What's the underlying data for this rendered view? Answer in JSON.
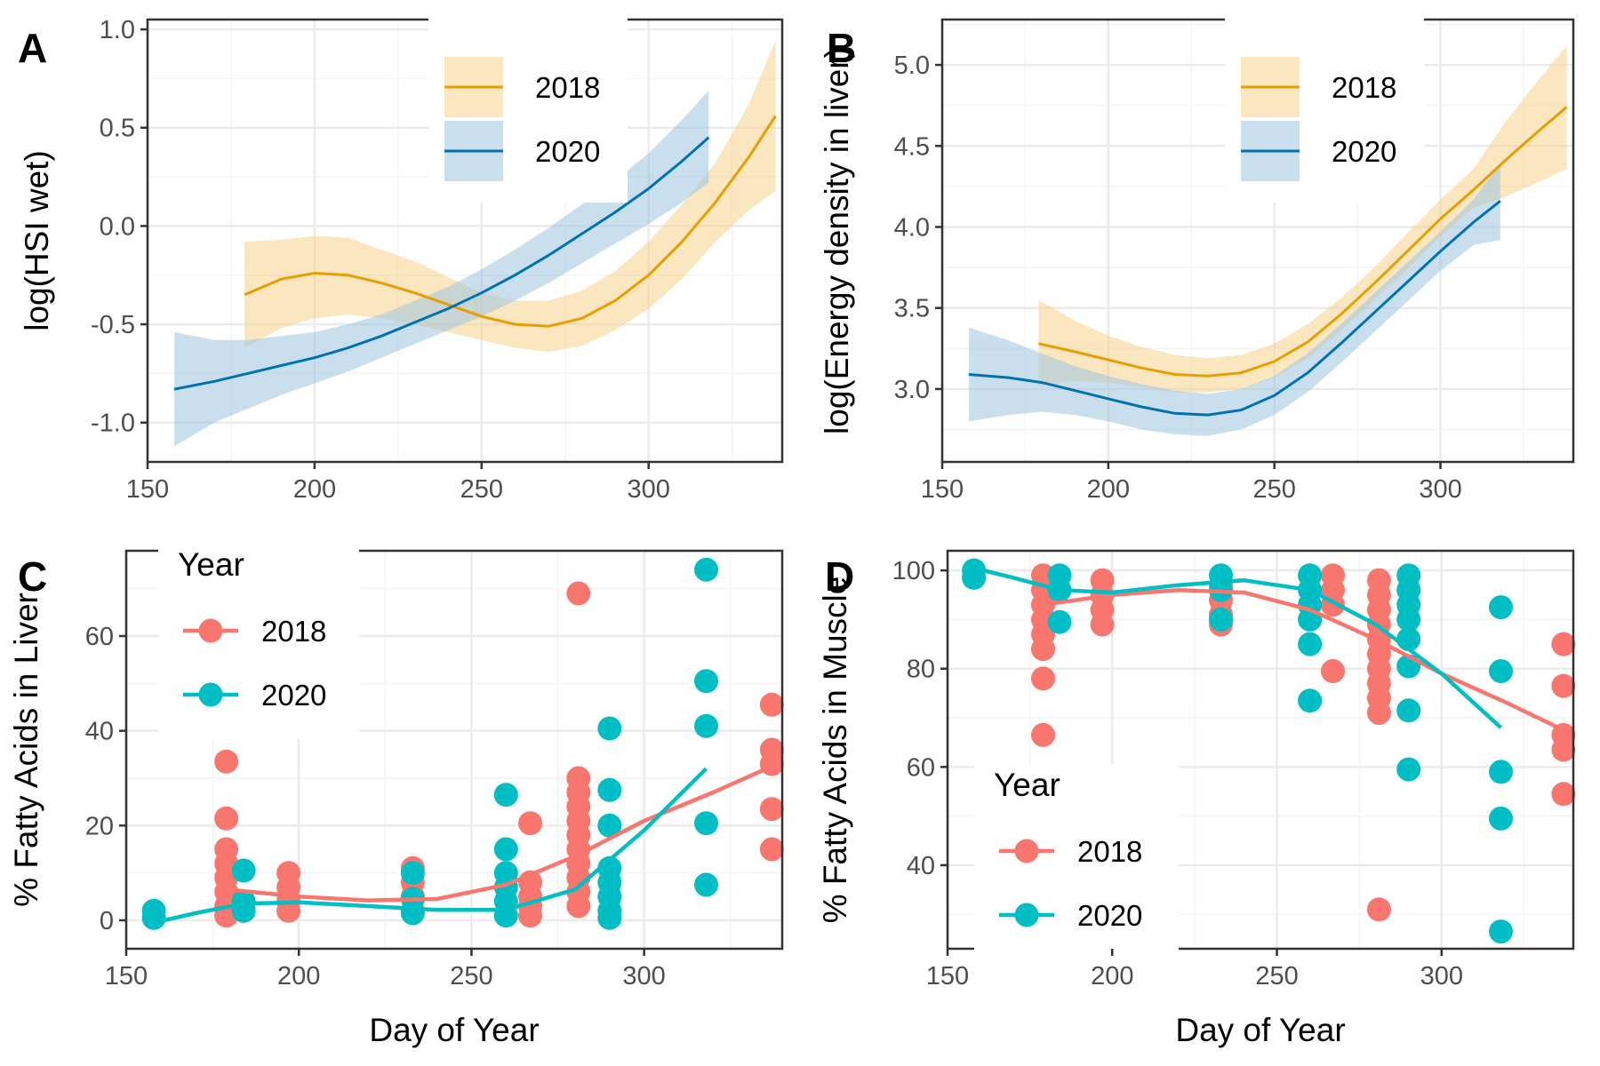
{
  "colors": {
    "line_2018": "#E69F00",
    "line_2020": "#0072B2",
    "ribbon_2018": "#F5D28A",
    "ribbon_2020": "#9CC5E0",
    "point_2018": "#F8766D",
    "point_2020": "#00BFC4",
    "grid_major": "#EBEBEB",
    "grid_minor": "#F4F4F4",
    "axis_text": "#4D4D4D"
  },
  "chart_data": [
    {
      "panel": "A",
      "type": "line",
      "ylabel": "log(HSI wet)",
      "xlabel": "",
      "xlim": [
        150,
        340
      ],
      "ylim": [
        -1.2,
        1.05
      ],
      "xticks": [
        150,
        200,
        250,
        300
      ],
      "yticks": [
        -1.0,
        -0.5,
        0.0,
        0.5,
        1.0
      ],
      "ytick_labels": [
        "-1.0",
        "-0.5",
        "0.0",
        "0.5",
        "1.0"
      ],
      "legend": {
        "title": "",
        "position": "top-right",
        "labels": [
          "2018",
          "2020"
        ]
      },
      "series": [
        {
          "name": "2018",
          "color_key": "line_2018",
          "x": [
            179,
            190,
            200,
            210,
            220,
            230,
            240,
            250,
            260,
            270,
            280,
            290,
            300,
            310,
            320,
            330,
            338
          ],
          "y": [
            -0.35,
            -0.27,
            -0.24,
            -0.25,
            -0.29,
            -0.34,
            -0.4,
            -0.46,
            -0.5,
            -0.51,
            -0.47,
            -0.38,
            -0.25,
            -0.08,
            0.12,
            0.35,
            0.56
          ],
          "lower": [
            -0.62,
            -0.52,
            -0.47,
            -0.45,
            -0.47,
            -0.5,
            -0.54,
            -0.58,
            -0.62,
            -0.64,
            -0.61,
            -0.53,
            -0.42,
            -0.27,
            -0.08,
            0.08,
            0.18
          ],
          "upper": [
            -0.08,
            -0.07,
            -0.05,
            -0.06,
            -0.12,
            -0.18,
            -0.26,
            -0.34,
            -0.38,
            -0.38,
            -0.33,
            -0.23,
            -0.08,
            0.11,
            0.32,
            0.62,
            0.94
          ]
        },
        {
          "name": "2020",
          "color_key": "line_2020",
          "x": [
            158,
            170,
            180,
            190,
            200,
            210,
            220,
            230,
            240,
            250,
            260,
            270,
            280,
            290,
            300,
            310,
            318
          ],
          "y": [
            -0.83,
            -0.79,
            -0.75,
            -0.71,
            -0.67,
            -0.62,
            -0.56,
            -0.49,
            -0.42,
            -0.34,
            -0.25,
            -0.15,
            -0.04,
            0.07,
            0.19,
            0.33,
            0.45
          ],
          "lower": [
            -1.12,
            -1.0,
            -0.93,
            -0.86,
            -0.8,
            -0.74,
            -0.67,
            -0.6,
            -0.53,
            -0.46,
            -0.38,
            -0.29,
            -0.19,
            -0.09,
            0.01,
            0.12,
            0.22
          ],
          "upper": [
            -0.54,
            -0.58,
            -0.58,
            -0.56,
            -0.54,
            -0.5,
            -0.45,
            -0.38,
            -0.31,
            -0.22,
            -0.12,
            -0.01,
            0.11,
            0.23,
            0.37,
            0.54,
            0.69
          ]
        }
      ]
    },
    {
      "panel": "B",
      "type": "line",
      "ylabel": "log(Energy density in liver)",
      "xlabel": "",
      "xlim": [
        150,
        340
      ],
      "ylim": [
        2.55,
        5.28
      ],
      "xticks": [
        150,
        200,
        250,
        300
      ],
      "yticks": [
        3.0,
        3.5,
        4.0,
        4.5,
        5.0
      ],
      "ytick_labels": [
        "3.0",
        "3.5",
        "4.0",
        "4.5",
        "5.0"
      ],
      "legend": {
        "title": "",
        "position": "top-right",
        "labels": [
          "2018",
          "2020"
        ]
      },
      "series": [
        {
          "name": "2018",
          "color_key": "line_2018",
          "x": [
            179,
            190,
            200,
            210,
            220,
            230,
            240,
            250,
            260,
            270,
            280,
            290,
            300,
            310,
            320,
            330,
            338
          ],
          "y": [
            3.28,
            3.23,
            3.18,
            3.13,
            3.09,
            3.08,
            3.1,
            3.17,
            3.29,
            3.46,
            3.65,
            3.85,
            4.05,
            4.23,
            4.42,
            4.6,
            4.74
          ],
          "lower": [
            3.02,
            3.05,
            3.04,
            3.01,
            2.98,
            2.98,
            3.0,
            3.07,
            3.19,
            3.36,
            3.55,
            3.74,
            3.94,
            4.12,
            4.19,
            4.28,
            4.36
          ],
          "upper": [
            3.55,
            3.42,
            3.33,
            3.26,
            3.21,
            3.19,
            3.21,
            3.28,
            3.4,
            3.56,
            3.75,
            3.96,
            4.17,
            4.36,
            4.66,
            4.92,
            5.12
          ]
        },
        {
          "name": "2020",
          "color_key": "line_2020",
          "x": [
            158,
            170,
            180,
            190,
            200,
            210,
            220,
            230,
            240,
            250,
            260,
            270,
            280,
            290,
            300,
            310,
            318
          ],
          "y": [
            3.09,
            3.07,
            3.04,
            2.99,
            2.94,
            2.89,
            2.85,
            2.84,
            2.87,
            2.96,
            3.1,
            3.28,
            3.47,
            3.66,
            3.85,
            4.03,
            4.16
          ],
          "lower": [
            2.8,
            2.84,
            2.86,
            2.84,
            2.8,
            2.75,
            2.72,
            2.71,
            2.75,
            2.84,
            2.98,
            3.16,
            3.35,
            3.54,
            3.73,
            3.89,
            3.92
          ],
          "upper": [
            3.38,
            3.3,
            3.22,
            3.14,
            3.08,
            3.03,
            2.99,
            2.97,
            3.0,
            3.08,
            3.22,
            3.4,
            3.59,
            3.78,
            3.97,
            4.17,
            4.4
          ]
        }
      ]
    },
    {
      "panel": "C",
      "type": "scatter",
      "ylabel": "% Fatty Acids in Liver",
      "xlabel": "Day of Year",
      "xlim": [
        150,
        340
      ],
      "ylim": [
        -6,
        78
      ],
      "xticks": [
        150,
        200,
        250,
        300
      ],
      "yticks": [
        0,
        20,
        40,
        60
      ],
      "ytick_labels": [
        "0",
        "20",
        "40",
        "60"
      ],
      "legend": {
        "title": "Year",
        "position": "top-left",
        "labels": [
          "2018",
          "2020"
        ]
      },
      "series": [
        {
          "name": "2018",
          "color_key": "point_2018",
          "points": [
            [
              179,
              33.5
            ],
            [
              179,
              21.5
            ],
            [
              179,
              15
            ],
            [
              179,
              12
            ],
            [
              179,
              9
            ],
            [
              179,
              6
            ],
            [
              179,
              3
            ],
            [
              179,
              1
            ],
            [
              184,
              4
            ],
            [
              184,
              2
            ],
            [
              197,
              10
            ],
            [
              197,
              7
            ],
            [
              197,
              4
            ],
            [
              197,
              2
            ],
            [
              233,
              11
            ],
            [
              233,
              8
            ],
            [
              233,
              5
            ],
            [
              233,
              2
            ],
            [
              267,
              20.5
            ],
            [
              267,
              8
            ],
            [
              267,
              5
            ],
            [
              267,
              3
            ],
            [
              267,
              1
            ],
            [
              281,
              69
            ],
            [
              281,
              30
            ],
            [
              281,
              27
            ],
            [
              281,
              24
            ],
            [
              281,
              21
            ],
            [
              281,
              18
            ],
            [
              281,
              15
            ],
            [
              281,
              12
            ],
            [
              281,
              9
            ],
            [
              281,
              6
            ],
            [
              281,
              3
            ],
            [
              337,
              45.5
            ],
            [
              337,
              36
            ],
            [
              337,
              33
            ],
            [
              337,
              23.5
            ],
            [
              337,
              15
            ]
          ],
          "trend_x": [
            179,
            200,
            220,
            240,
            260,
            280,
            300,
            320,
            337
          ],
          "trend_y": [
            6.5,
            5,
            4.2,
            4.5,
            7.5,
            13.5,
            21,
            27,
            32.5
          ]
        },
        {
          "name": "2020",
          "color_key": "point_2020",
          "points": [
            [
              158,
              2
            ],
            [
              158,
              0.5
            ],
            [
              184,
              10.5
            ],
            [
              184,
              4
            ],
            [
              184,
              2
            ],
            [
              233,
              10
            ],
            [
              233,
              4.5
            ],
            [
              233,
              1.5
            ],
            [
              260,
              26.5
            ],
            [
              260,
              15
            ],
            [
              260,
              10
            ],
            [
              260,
              7
            ],
            [
              260,
              4
            ],
            [
              260,
              1
            ],
            [
              290,
              40.5
            ],
            [
              290,
              27.5
            ],
            [
              290,
              20
            ],
            [
              290,
              11
            ],
            [
              290,
              8
            ],
            [
              290,
              5
            ],
            [
              290,
              2
            ],
            [
              290,
              0.5
            ],
            [
              318,
              74
            ],
            [
              318,
              50.5
            ],
            [
              318,
              41
            ],
            [
              318,
              20.5
            ],
            [
              318,
              7.5
            ]
          ],
          "trend_x": [
            158,
            170,
            184,
            200,
            220,
            240,
            260,
            280,
            300,
            318
          ],
          "trend_y": [
            -0.5,
            1.5,
            3.5,
            3.8,
            3.0,
            2.2,
            2.2,
            6.5,
            19,
            32
          ]
        }
      ]
    },
    {
      "panel": "D",
      "type": "scatter",
      "ylabel": "% Fatty Acids in Muscle",
      "xlabel": "Day of Year",
      "xlim": [
        150,
        340
      ],
      "ylim": [
        23,
        104
      ],
      "xticks": [
        150,
        200,
        250,
        300
      ],
      "yticks": [
        40,
        60,
        80,
        100
      ],
      "ytick_labels": [
        "40",
        "60",
        "80",
        "100"
      ],
      "legend": {
        "title": "Year",
        "position": "bottom-left",
        "labels": [
          "2018",
          "2020"
        ]
      },
      "series": [
        {
          "name": "2018",
          "color_key": "point_2018",
          "points": [
            [
              179,
              99
            ],
            [
              179,
              96
            ],
            [
              179,
              93
            ],
            [
              179,
              90
            ],
            [
              179,
              87
            ],
            [
              179,
              84
            ],
            [
              179,
              78
            ],
            [
              179,
              66.5
            ],
            [
              197,
              98
            ],
            [
              197,
              95
            ],
            [
              197,
              92
            ],
            [
              197,
              89
            ],
            [
              233,
              97
            ],
            [
              233,
              94
            ],
            [
              233,
              91
            ],
            [
              233,
              89
            ],
            [
              267,
              99
            ],
            [
              267,
              96
            ],
            [
              267,
              93
            ],
            [
              267,
              79.5
            ],
            [
              281,
              98
            ],
            [
              281,
              95
            ],
            [
              281,
              92
            ],
            [
              281,
              89
            ],
            [
              281,
              86
            ],
            [
              281,
              83
            ],
            [
              281,
              80
            ],
            [
              281,
              77
            ],
            [
              281,
              74
            ],
            [
              281,
              71
            ],
            [
              281,
              31
            ],
            [
              337,
              85
            ],
            [
              337,
              76.5
            ],
            [
              337,
              66.5
            ],
            [
              337,
              63.5
            ],
            [
              337,
              54.5
            ]
          ],
          "trend_x": [
            179,
            200,
            220,
            240,
            260,
            280,
            300,
            320,
            337
          ],
          "trend_y": [
            93,
            95,
            96,
            95.5,
            92,
            86,
            79,
            73,
            67.5
          ]
        },
        {
          "name": "2020",
          "color_key": "point_2020",
          "points": [
            [
              158,
              100
            ],
            [
              158,
              98.5
            ],
            [
              184,
              99
            ],
            [
              184,
              96
            ],
            [
              184,
              89.5
            ],
            [
              233,
              99
            ],
            [
              233,
              96
            ],
            [
              233,
              90
            ],
            [
              260,
              99
            ],
            [
              260,
              96
            ],
            [
              260,
              93
            ],
            [
              260,
              90
            ],
            [
              260,
              85
            ],
            [
              260,
              73.5
            ],
            [
              290,
              99
            ],
            [
              290,
              96
            ],
            [
              290,
              93
            ],
            [
              290,
              90
            ],
            [
              290,
              86
            ],
            [
              290,
              80.5
            ],
            [
              290,
              71.5
            ],
            [
              290,
              59.5
            ],
            [
              318,
              92.5
            ],
            [
              318,
              79.5
            ],
            [
              318,
              59
            ],
            [
              318,
              49.5
            ],
            [
              318,
              26.5
            ]
          ],
          "trend_x": [
            158,
            170,
            184,
            200,
            220,
            240,
            260,
            280,
            300,
            318
          ],
          "trend_y": [
            100.5,
            98.5,
            96,
            95.5,
            97,
            98,
            96,
            89,
            79,
            68
          ]
        }
      ]
    }
  ]
}
